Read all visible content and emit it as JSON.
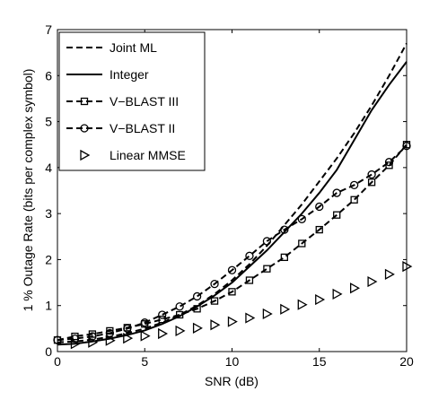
{
  "chart_data": {
    "type": "line",
    "xlabel": "SNR (dB)",
    "ylabel": "1 % Outage Rate (bits per complex symbol)",
    "x": [
      0,
      1,
      2,
      3,
      4,
      5,
      6,
      7,
      8,
      9,
      10,
      11,
      12,
      13,
      14,
      15,
      16,
      17,
      18,
      19,
      20
    ],
    "xlim": [
      0,
      20
    ],
    "xticks": [
      0,
      5,
      10,
      15,
      20
    ],
    "ylim": [
      0,
      7
    ],
    "yticks": [
      0,
      1,
      2,
      3,
      4,
      5,
      6,
      7
    ],
    "grid": false,
    "legend": "upper-left",
    "series": [
      {
        "name": "Joint ML",
        "color": "#000000",
        "line": "dashed",
        "marker": "none",
        "values": [
          0.2,
          0.22,
          0.26,
          0.32,
          0.4,
          0.5,
          0.63,
          0.8,
          1.0,
          1.25,
          1.55,
          1.9,
          2.3,
          2.75,
          3.2,
          3.7,
          4.2,
          4.75,
          5.35,
          6.0,
          6.7
        ]
      },
      {
        "name": "Integer",
        "color": "#000000",
        "line": "solid",
        "marker": "none",
        "values": [
          0.15,
          0.17,
          0.22,
          0.28,
          0.36,
          0.46,
          0.6,
          0.77,
          0.98,
          1.22,
          1.5,
          1.85,
          2.2,
          2.6,
          3.0,
          3.45,
          3.95,
          4.6,
          5.25,
          5.8,
          6.3
        ]
      },
      {
        "name": "V−BLAST III",
        "color": "#000000",
        "line": "dashed",
        "marker": "square",
        "values": [
          0.25,
          0.33,
          0.38,
          0.45,
          0.52,
          0.6,
          0.7,
          0.8,
          0.93,
          1.1,
          1.3,
          1.55,
          1.8,
          2.05,
          2.35,
          2.65,
          2.97,
          3.3,
          3.68,
          4.05,
          4.5
        ]
      },
      {
        "name": "V−BLAST II",
        "color": "#000000",
        "line": "dashed",
        "marker": "circle",
        "values": [
          0.25,
          0.28,
          0.33,
          0.4,
          0.5,
          0.63,
          0.8,
          0.98,
          1.2,
          1.47,
          1.77,
          2.08,
          2.4,
          2.65,
          2.88,
          3.15,
          3.45,
          3.62,
          3.85,
          4.12,
          4.47
        ]
      },
      {
        "name": "Linear MMSE",
        "color": "#000000",
        "line": "none",
        "marker": "triangle",
        "values": [
          null,
          0.17,
          0.2,
          0.24,
          0.29,
          0.34,
          0.39,
          0.45,
          0.51,
          0.58,
          0.65,
          0.73,
          0.82,
          0.92,
          1.02,
          1.13,
          1.25,
          1.38,
          1.52,
          1.68,
          1.85
        ]
      }
    ]
  }
}
